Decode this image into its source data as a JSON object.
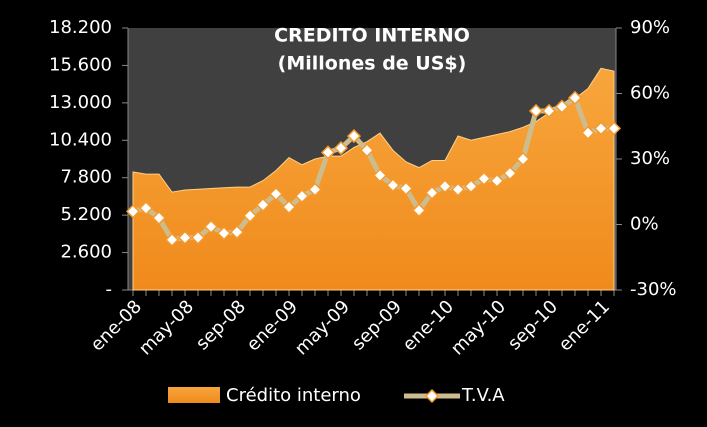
{
  "chart_data": {
    "type": "area_line",
    "title": "CREDITO INTERNO",
    "subtitle": "(Millones de US$)",
    "categories": [
      "ene-08",
      null,
      null,
      null,
      "may-08",
      null,
      null,
      null,
      "sep-08",
      null,
      null,
      null,
      "ene-09",
      null,
      null,
      null,
      "may-09",
      null,
      null,
      null,
      "sep-09",
      null,
      null,
      null,
      "ene-10",
      null,
      null,
      null,
      "may-10",
      null,
      null,
      null,
      "sep-10",
      null,
      null,
      null,
      "ene-11",
      null
    ],
    "series": [
      {
        "name": "Crédito interno",
        "color": "#f59a2e",
        "axis": "y",
        "values": [
          8200,
          8050,
          8050,
          6800,
          6950,
          7000,
          7050,
          7100,
          7150,
          7150,
          7600,
          8300,
          9200,
          8700,
          9100,
          9300,
          9300,
          9900,
          10300,
          10900,
          9700,
          8900,
          8500,
          9000,
          9000,
          10700,
          10400,
          10600,
          10800,
          11000,
          11300,
          11700,
          12300,
          12800,
          13300,
          14000,
          15400,
          15200
        ]
      },
      {
        "name": "T.V.A",
        "color": "#cdbd8e",
        "axis": "y2",
        "values": [
          6,
          7.5,
          3,
          -7,
          -6,
          -6,
          -1,
          -4,
          -3.5,
          4,
          9,
          14,
          8,
          13,
          16,
          33,
          35,
          40.5,
          34,
          22.5,
          18,
          16.5,
          6.5,
          14.5,
          17.5,
          16,
          17.5,
          21,
          20,
          23.5,
          30,
          52,
          52,
          54,
          58,
          42,
          44,
          44
        ]
      }
    ],
    "ylim": [
      0,
      18200
    ],
    "yticks": [
      {
        "value": 0,
        "label": "-"
      },
      {
        "value": 2600,
        "label": "2.600"
      },
      {
        "value": 5200,
        "label": "5.200"
      },
      {
        "value": 7800,
        "label": "7.800"
      },
      {
        "value": 10400,
        "label": "10.400"
      },
      {
        "value": 13000,
        "label": "13.000"
      },
      {
        "value": 15600,
        "label": "15.600"
      },
      {
        "value": 18200,
        "label": "18.200"
      }
    ],
    "y2lim": [
      -30,
      90
    ],
    "y2ticks": [
      {
        "value": -30,
        "label": "-30%"
      },
      {
        "value": 0,
        "label": "0%"
      },
      {
        "value": 30,
        "label": "30%"
      },
      {
        "value": 60,
        "label": "60%"
      },
      {
        "value": 90,
        "label": "90%"
      }
    ],
    "legend": "bottom"
  }
}
